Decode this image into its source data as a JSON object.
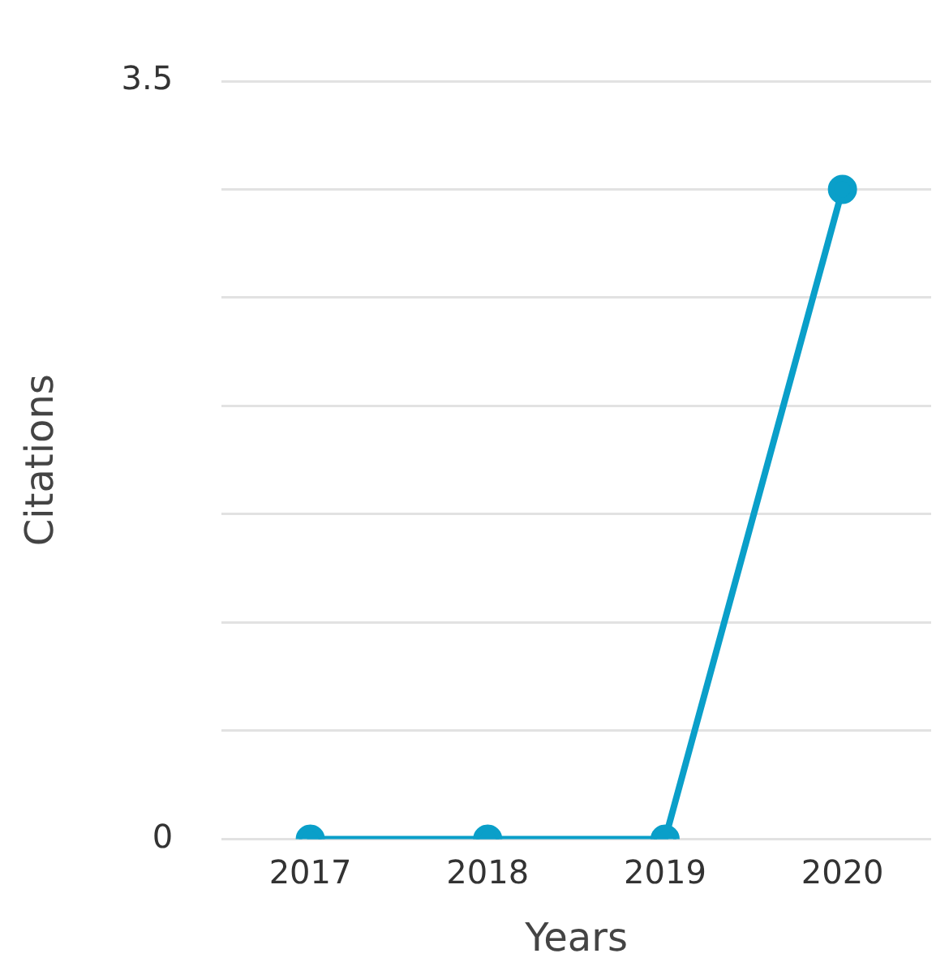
{
  "chart_data": {
    "type": "line",
    "xlabel": "Years",
    "ylabel": "Citations",
    "categories": [
      "2017",
      "2018",
      "2019",
      "2020"
    ],
    "series": [
      {
        "color": "#0a9fc9",
        "values": [
          0,
          0,
          0,
          3
        ]
      }
    ],
    "ylim": [
      0,
      3.5
    ],
    "yticks": [
      0,
      {
        "value": 0.5,
        "label": null
      },
      {
        "value": 1,
        "label": null
      },
      {
        "value": 1.5,
        "label": null
      },
      {
        "value": 2,
        "label": null
      },
      {
        "value": 2.5,
        "label": null
      },
      {
        "value": 3,
        "label": null
      },
      3.5
    ],
    "grid": "y",
    "marker": "circle",
    "line_style": "solid",
    "legend": false
  }
}
